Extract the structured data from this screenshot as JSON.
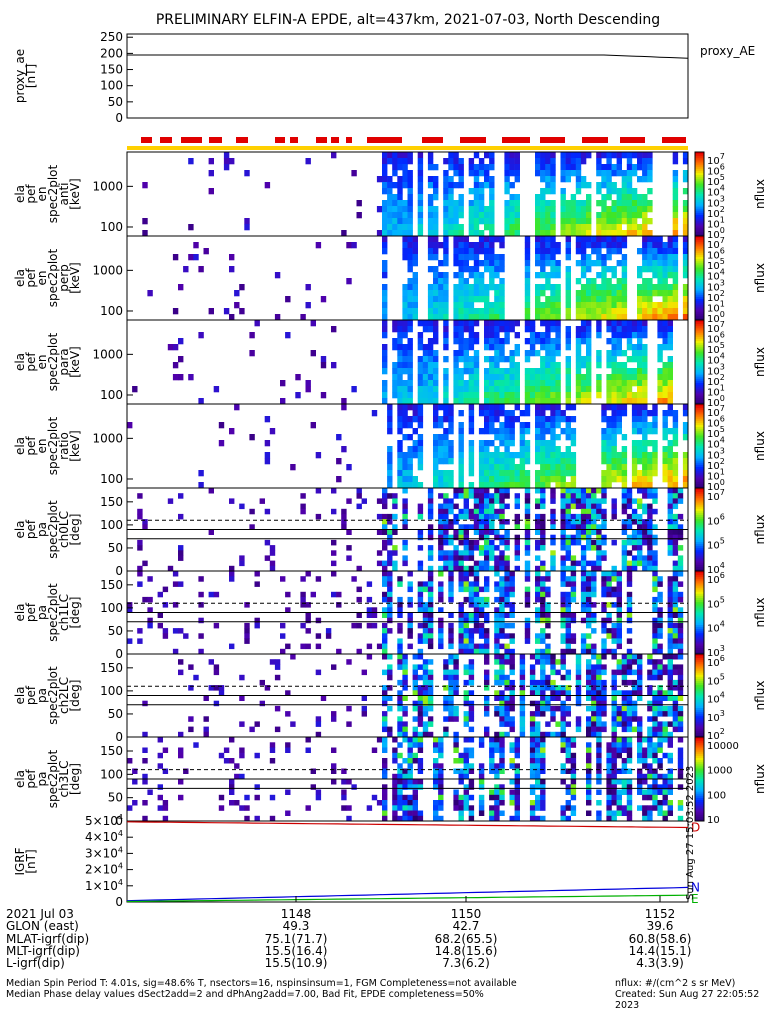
{
  "title": "PRELIMINARY ELFIN-A EPDE, alt=437km, 2021-07-03, North Descending",
  "colors": {
    "accent_red": "#e00000",
    "accent_yellow": "#ffd000",
    "n_line": "#0000dd",
    "e_line": "#00b000",
    "d_line": "#cc0000"
  },
  "chart_data": [
    {
      "type": "line",
      "id": "proxy_ae",
      "ylabel": [
        "proxy_ae",
        "[nT]"
      ],
      "ylim": [
        0,
        260
      ],
      "yticks": [
        "0",
        "50",
        "100",
        "150",
        "200",
        "250"
      ],
      "right_label": "proxy_AE",
      "start": 195,
      "end": 185
    },
    {
      "type": "heatmap",
      "id": "en-anti",
      "ylabel": [
        "ela",
        "pef",
        "en",
        "spec2plot",
        "anti",
        "[keV]"
      ],
      "yticks": [
        "100",
        "1000"
      ],
      "log": true,
      "cbar_ticks": [
        "10^7",
        "10^6",
        "10^5",
        "10^4",
        "10^3",
        "10^2",
        "10^1",
        "10^0"
      ],
      "cbar_label": "nflux"
    },
    {
      "type": "heatmap",
      "id": "en-perp",
      "ylabel": [
        "ela",
        "pef",
        "en",
        "spec2plot",
        "perp",
        "[keV]"
      ],
      "yticks": [
        "100",
        "1000"
      ],
      "log": true,
      "cbar_ticks": [
        "10^7",
        "10^6",
        "10^5",
        "10^4",
        "10^3",
        "10^2",
        "10^1",
        "10^0"
      ],
      "cbar_label": "nflux"
    },
    {
      "type": "heatmap",
      "id": "en-para",
      "ylabel": [
        "ela",
        "pef",
        "en",
        "spec2plot",
        "para",
        "[keV]"
      ],
      "yticks": [
        "100",
        "1000"
      ],
      "log": true,
      "cbar_ticks": [
        "10^7",
        "10^6",
        "10^5",
        "10^4",
        "10^3",
        "10^2",
        "10^1",
        "10^0"
      ],
      "cbar_label": "nflux"
    },
    {
      "type": "heatmap",
      "id": "en-ratio",
      "ylabel": [
        "ela",
        "pef",
        "en",
        "spec2plot",
        "ratio",
        "[keV]"
      ],
      "yticks": [
        "100",
        "1000"
      ],
      "log": true,
      "cbar_ticks": [
        "10^7",
        "10^6",
        "10^5",
        "10^4",
        "10^3",
        "10^2",
        "10^1",
        "10^0"
      ],
      "cbar_label": "nflux"
    },
    {
      "type": "heatmap",
      "id": "pa-ch0",
      "ylabel": [
        "ela",
        "pef",
        "pa",
        "spec2plot",
        "ch0LC",
        "[deg]"
      ],
      "yticks": [
        "0",
        "50",
        "100",
        "150"
      ],
      "ylim": [
        0,
        180
      ],
      "cbar_ticks": [
        "10^7",
        "10^6",
        "10^5",
        "10^4"
      ],
      "cbar_label": "nflux"
    },
    {
      "type": "heatmap",
      "id": "pa-ch1",
      "ylabel": [
        "ela",
        "pef",
        "pa",
        "spec2plot",
        "ch1LC",
        "[deg]"
      ],
      "yticks": [
        "0",
        "50",
        "100",
        "150"
      ],
      "ylim": [
        0,
        180
      ],
      "cbar_ticks": [
        "10^6",
        "10^5",
        "10^4",
        "10^3"
      ],
      "cbar_label": "nflux"
    },
    {
      "type": "heatmap",
      "id": "pa-ch2",
      "ylabel": [
        "ela",
        "pef",
        "pa",
        "spec2plot",
        "ch2LC",
        "[deg]"
      ],
      "yticks": [
        "0",
        "50",
        "100",
        "150"
      ],
      "ylim": [
        0,
        180
      ],
      "cbar_ticks": [
        "10^6",
        "10^5",
        "10^4",
        "10^3",
        "10^2"
      ],
      "cbar_label": "nflux"
    },
    {
      "type": "heatmap",
      "id": "pa-ch3",
      "ylabel": [
        "ela",
        "pef",
        "pa",
        "spec2plot",
        "ch3LC",
        "[deg]"
      ],
      "yticks": [
        "0",
        "50",
        "100",
        "150"
      ],
      "ylim": [
        0,
        180
      ],
      "cbar_ticks": [
        "10000",
        "1000",
        "100",
        "10"
      ],
      "cbar_label": "nflux"
    },
    {
      "type": "line",
      "id": "igrf",
      "ylabel": [
        "IGRF",
        "[nT]"
      ],
      "ylim": [
        0,
        50000
      ],
      "yticks": [
        "0",
        "1×10^4",
        "2×10^4",
        "3×10^4",
        "4×10^4",
        "5×10^4"
      ],
      "series": [
        {
          "name": "N",
          "start": 800,
          "end": 9000
        },
        {
          "name": "E",
          "start": 300,
          "end": 4200
        },
        {
          "name": "D",
          "start": 49500,
          "end": 46000
        }
      ]
    }
  ],
  "epde_bar_label": "Aug 27 15:03:52 2023",
  "side_stamp": "Sun Aug 27 15:03:52 2023",
  "xaxis": {
    "labels": [
      "1148",
      "1150",
      "1152"
    ],
    "rows": [
      {
        "name": "2021 Jul 03",
        "values": [
          "1148",
          "1150",
          "1152"
        ]
      },
      {
        "name": "GLON (east)",
        "values": [
          "49.3",
          "42.7",
          "39.6"
        ]
      },
      {
        "name": "MLAT-igrf(dip)",
        "values": [
          "75.1(71.7)",
          "68.2(65.5)",
          "60.8(58.6)"
        ]
      },
      {
        "name": "MLT-igrf(dip)",
        "values": [
          "15.5(16.4)",
          "14.8(15.6)",
          "14.4(15.1)"
        ]
      },
      {
        "name": "L-igrf(dip)",
        "values": [
          "15.5(10.9)",
          "7.3(6.2)",
          "4.3(3.9)"
        ]
      }
    ]
  },
  "footer": {
    "line1_left": "Median Spin Period T: 4.01s, sig=48.6% T, nsectors=16, nspinsinsum=1, FGM Completeness=not available",
    "line2_left": "Median Phase delay values dSect2add=2 and dPhAng2add=7.00, Bad Fit, EPDE completeness=50%",
    "line1_right": "nflux: #/(cm^2 s sr MeV)",
    "line2_right": "Created: Sun Aug 27 22:05:52 2023"
  }
}
